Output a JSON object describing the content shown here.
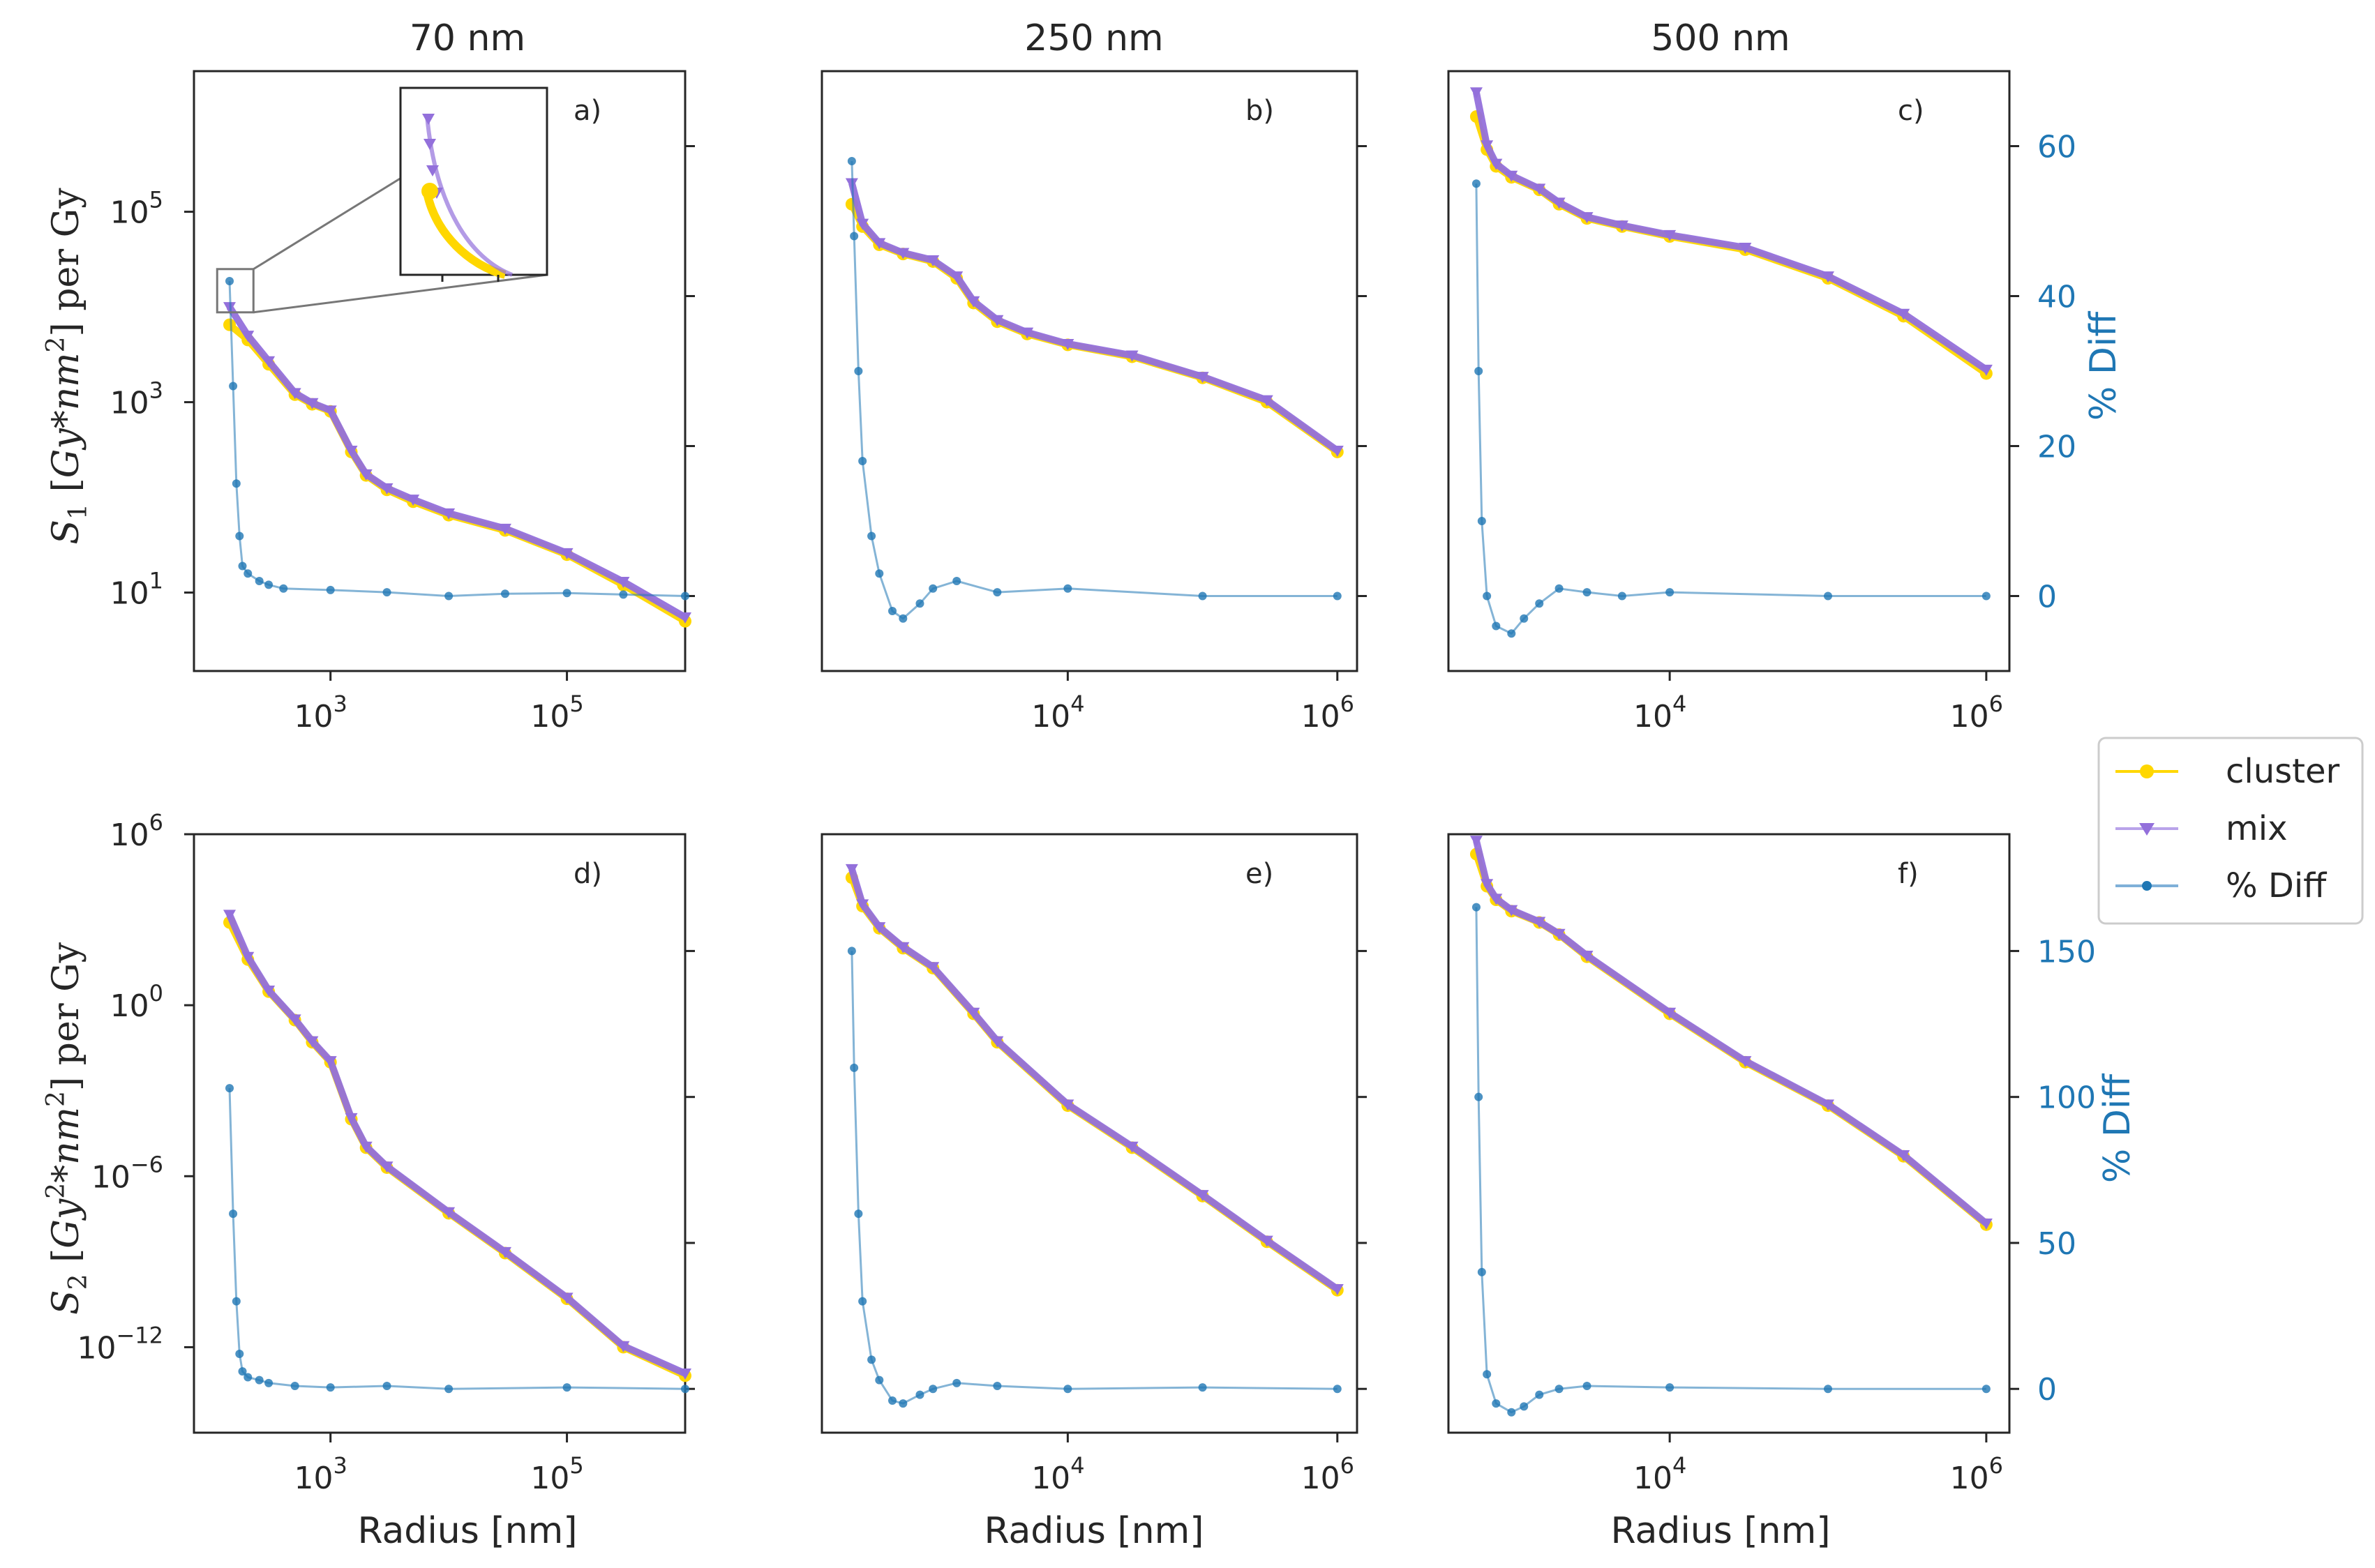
{
  "figure": {
    "legend": {
      "placement": "right-center",
      "entries": [
        {
          "key": "cluster",
          "label": "cluster",
          "color": "#ffd700",
          "marker": "circle"
        },
        {
          "key": "mix",
          "label": "mix",
          "color": "#9370db",
          "marker": "triangle-down"
        },
        {
          "key": "diff",
          "label": "% Diff",
          "color": "#1f77b4",
          "marker": "dot"
        }
      ]
    },
    "column_titles": [
      "70 nm",
      "250 nm",
      "500 nm"
    ],
    "xlabel": "Radius [nm]",
    "row_ylabels": [
      "S1 [Gy*nm2] per Gy",
      "S2 [Gy2*nm2] per Gy"
    ],
    "right_ylabel": "% Diff",
    "colors": {
      "cluster": "#ffd700",
      "mix": "#9370db",
      "diff": "#1f77b4",
      "axes": "#262626"
    }
  },
  "chart_data": [
    {
      "panel": "a)",
      "row": 0,
      "col": 0,
      "type": "line",
      "x_scale": "log",
      "y_scale": "log",
      "xlim": [
        70,
        1000000
      ],
      "ylim": [
        1.5,
        3000000
      ],
      "xticks": [
        {
          "v": 1000,
          "base": "10",
          "exp": "3"
        },
        {
          "v": 100000,
          "base": "10",
          "exp": "5"
        }
      ],
      "yticks": [
        {
          "v": 10,
          "base": "10",
          "exp": "1"
        },
        {
          "v": 1000,
          "base": "10",
          "exp": "3"
        },
        {
          "v": 100000,
          "base": "10",
          "exp": "5"
        }
      ],
      "y2lim": [
        -10,
        70
      ],
      "y2ticks": [
        0,
        20,
        40,
        60
      ],
      "show_y2": false,
      "inset": true,
      "series": [
        {
          "key": "cluster",
          "x": [
            140,
            200,
            300,
            500,
            700,
            1000,
            1500,
            2000,
            3000,
            5000,
            10000,
            30000,
            100000,
            300000,
            1000000
          ],
          "y": [
            6500,
            4500,
            2500,
            1200,
            950,
            800,
            300,
            170,
            120,
            90,
            65,
            45,
            25,
            12,
            5
          ]
        },
        {
          "key": "mix",
          "x": [
            140,
            200,
            300,
            500,
            700,
            1000,
            1500,
            2000,
            3000,
            5000,
            10000,
            30000,
            100000,
            300000,
            1000000
          ],
          "y": [
            10000,
            5000,
            2700,
            1250,
            980,
            820,
            310,
            175,
            125,
            95,
            68,
            47,
            26,
            13,
            5.5
          ]
        },
        {
          "key": "diff",
          "x": [
            140,
            150,
            160,
            170,
            180,
            200,
            250,
            300,
            400,
            1000,
            3000,
            10000,
            30000,
            100000,
            300000,
            1000000
          ],
          "y": [
            42,
            28,
            15,
            8,
            4,
            3,
            2,
            1.5,
            1,
            0.8,
            0.5,
            0,
            0.3,
            0.4,
            0.2,
            0
          ]
        }
      ]
    },
    {
      "panel": "b)",
      "row": 0,
      "col": 1,
      "type": "line",
      "x_scale": "log",
      "y_scale": "log",
      "xlim": [
        150,
        1400000
      ],
      "ylim": [
        1.5,
        3000000
      ],
      "xticks": [
        {
          "v": 10000,
          "base": "10",
          "exp": "4"
        },
        {
          "v": 1000000,
          "base": "10",
          "exp": "6"
        }
      ],
      "yticks": [],
      "y2lim": [
        -10,
        70
      ],
      "y2ticks": [
        0,
        20,
        40,
        60
      ],
      "show_y2": false,
      "series": [
        {
          "key": "cluster",
          "x": [
            250,
            300,
            400,
            600,
            1000,
            1500,
            2000,
            3000,
            5000,
            10000,
            30000,
            100000,
            300000,
            1000000
          ],
          "y": [
            120000,
            70000,
            45000,
            36000,
            30000,
            20000,
            11000,
            7000,
            5200,
            4000,
            3000,
            1800,
            1000,
            300
          ]
        },
        {
          "key": "mix",
          "x": [
            250,
            300,
            400,
            600,
            1000,
            1500,
            2000,
            3000,
            5000,
            10000,
            30000,
            100000,
            300000,
            1000000
          ],
          "y": [
            200000,
            75000,
            47000,
            37000,
            31000,
            21000,
            11500,
            7300,
            5400,
            4100,
            3100,
            1850,
            1050,
            310
          ]
        },
        {
          "key": "diff",
          "x": [
            250,
            260,
            280,
            300,
            350,
            400,
            500,
            600,
            800,
            1000,
            1500,
            3000,
            10000,
            100000,
            1000000
          ],
          "y": [
            58,
            48,
            30,
            18,
            8,
            3,
            -2,
            -3,
            -1,
            1,
            2,
            0.5,
            1,
            0,
            0
          ]
        }
      ]
    },
    {
      "panel": "c)",
      "row": 0,
      "col": 2,
      "type": "line",
      "x_scale": "log",
      "y_scale": "log",
      "xlim": [
        400,
        1400000
      ],
      "ylim": [
        1.5,
        3000000
      ],
      "xticks": [
        {
          "v": 10000,
          "base": "10",
          "exp": "4"
        },
        {
          "v": 1000000,
          "base": "10",
          "exp": "6"
        }
      ],
      "yticks": [],
      "y2lim": [
        -10,
        70
      ],
      "y2ticks": [
        0,
        20,
        40,
        60
      ],
      "show_y2": true,
      "series": [
        {
          "key": "cluster",
          "x": [
            600,
            700,
            800,
            1000,
            1500,
            2000,
            3000,
            5000,
            10000,
            30000,
            100000,
            300000,
            1000000
          ],
          "y": [
            1000000,
            450000,
            300000,
            230000,
            170000,
            120000,
            85000,
            70000,
            55000,
            40000,
            20000,
            8000,
            2000
          ]
        },
        {
          "key": "mix",
          "x": [
            600,
            700,
            800,
            1000,
            1500,
            2000,
            3000,
            5000,
            10000,
            30000,
            100000,
            300000,
            1000000
          ],
          "y": [
            1800000,
            500000,
            320000,
            240000,
            175000,
            125000,
            88000,
            72000,
            57000,
            42000,
            21000,
            8500,
            2200
          ]
        },
        {
          "key": "diff",
          "x": [
            600,
            620,
            650,
            700,
            800,
            1000,
            1200,
            1500,
            2000,
            3000,
            5000,
            10000,
            100000,
            1000000
          ],
          "y": [
            55,
            30,
            10,
            0,
            -4,
            -5,
            -3,
            -1,
            1,
            0.5,
            0,
            0.5,
            0,
            0
          ]
        }
      ]
    },
    {
      "panel": "d)",
      "row": 1,
      "col": 0,
      "type": "line",
      "x_scale": "log",
      "y_scale": "log",
      "xlim": [
        70,
        1000000
      ],
      "ylim": [
        1e-15,
        1000000
      ],
      "xticks": [
        {
          "v": 1000,
          "base": "10",
          "exp": "3"
        },
        {
          "v": 100000,
          "base": "10",
          "exp": "5"
        }
      ],
      "yticks": [
        {
          "v": 1e-12,
          "base": "10",
          "exp": "−12"
        },
        {
          "v": 1e-06,
          "base": "10",
          "exp": "−6"
        },
        {
          "v": 1,
          "base": "10",
          "exp": "0"
        },
        {
          "v": 1000000,
          "base": "10",
          "exp": "6"
        }
      ],
      "y2lim": [
        -15,
        190
      ],
      "y2ticks": [
        0,
        50,
        100,
        150
      ],
      "show_y2": false,
      "series": [
        {
          "key": "cluster",
          "x": [
            140,
            200,
            300,
            500,
            700,
            1000,
            1500,
            2000,
            3000,
            10000,
            30000,
            100000,
            300000,
            1000000
          ],
          "y": [
            800,
            40,
            3,
            0.3,
            0.05,
            0.01,
            0.0001,
            1e-05,
            2e-06,
            5e-08,
            2e-09,
            5e-11,
            1e-12,
            1e-13
          ]
        },
        {
          "key": "mix",
          "x": [
            140,
            200,
            300,
            500,
            700,
            1000,
            1500,
            2000,
            3000,
            10000,
            30000,
            100000,
            300000,
            1000000
          ],
          "y": [
            1500,
            50,
            3.3,
            0.32,
            0.055,
            0.011,
            0.00011,
            1.1e-05,
            2.2e-06,
            5.5e-08,
            2.2e-09,
            5.5e-11,
            1.1e-12,
            1.2e-13
          ]
        },
        {
          "key": "diff",
          "x": [
            140,
            150,
            160,
            170,
            180,
            200,
            250,
            300,
            500,
            1000,
            3000,
            10000,
            100000,
            1000000
          ],
          "y": [
            103,
            60,
            30,
            12,
            6,
            4,
            3,
            2,
            1,
            0.5,
            1,
            0,
            0.5,
            0
          ]
        }
      ]
    },
    {
      "panel": "e)",
      "row": 1,
      "col": 1,
      "type": "line",
      "x_scale": "log",
      "y_scale": "log",
      "xlim": [
        150,
        1400000
      ],
      "ylim": [
        1e-15,
        1000000
      ],
      "xticks": [
        {
          "v": 10000,
          "base": "10",
          "exp": "4"
        },
        {
          "v": 1000000,
          "base": "10",
          "exp": "6"
        }
      ],
      "yticks": [],
      "y2lim": [
        -15,
        190
      ],
      "y2ticks": [
        0,
        50,
        100,
        150
      ],
      "show_y2": false,
      "series": [
        {
          "key": "cluster",
          "x": [
            250,
            300,
            400,
            600,
            1000,
            2000,
            3000,
            10000,
            30000,
            100000,
            300000,
            1000000
          ],
          "y": [
            30000,
            3000,
            500,
            100,
            20,
            0.5,
            0.05,
            0.0003,
            1e-05,
            2e-07,
            5e-09,
            1e-10
          ]
        },
        {
          "key": "mix",
          "x": [
            250,
            300,
            400,
            600,
            1000,
            2000,
            3000,
            10000,
            30000,
            100000,
            300000,
            1000000
          ],
          "y": [
            60000,
            3500,
            550,
            110,
            22,
            0.55,
            0.055,
            0.00033,
            1.1e-05,
            2.2e-07,
            5.5e-09,
            1.1e-10
          ]
        },
        {
          "key": "diff",
          "x": [
            250,
            260,
            280,
            300,
            350,
            400,
            500,
            600,
            800,
            1000,
            1500,
            3000,
            10000,
            100000,
            1000000
          ],
          "y": [
            150,
            110,
            60,
            30,
            10,
            3,
            -4,
            -5,
            -2,
            0,
            2,
            1,
            0,
            0.5,
            0
          ]
        }
      ]
    },
    {
      "panel": "f)",
      "row": 1,
      "col": 2,
      "type": "line",
      "x_scale": "log",
      "y_scale": "log",
      "xlim": [
        400,
        1400000
      ],
      "ylim": [
        1e-15,
        1000000
      ],
      "xticks": [
        {
          "v": 10000,
          "base": "10",
          "exp": "4"
        },
        {
          "v": 1000000,
          "base": "10",
          "exp": "6"
        }
      ],
      "yticks": [],
      "y2lim": [
        -15,
        190
      ],
      "y2ticks": [
        0,
        50,
        100,
        150
      ],
      "show_y2": true,
      "series": [
        {
          "key": "cluster",
          "x": [
            600,
            700,
            800,
            1000,
            1500,
            2000,
            3000,
            10000,
            30000,
            100000,
            300000,
            1000000
          ],
          "y": [
            200000,
            15000,
            5000,
            2000,
            800,
            300,
            50,
            0.5,
            0.01,
            0.0003,
            5e-06,
            2e-08
          ]
        },
        {
          "key": "mix",
          "x": [
            600,
            700,
            800,
            1000,
            1500,
            2000,
            3000,
            10000,
            30000,
            100000,
            300000,
            1000000
          ],
          "y": [
            600000,
            18000,
            5500,
            2200,
            850,
            320,
            55,
            0.55,
            0.011,
            0.00033,
            5.5e-06,
            2.2e-08
          ]
        },
        {
          "key": "diff",
          "x": [
            600,
            620,
            650,
            700,
            800,
            1000,
            1200,
            1500,
            2000,
            3000,
            10000,
            100000,
            1000000
          ],
          "y": [
            165,
            100,
            40,
            5,
            -5,
            -8,
            -6,
            -2,
            0,
            1,
            0.5,
            0,
            0
          ]
        }
      ]
    }
  ]
}
